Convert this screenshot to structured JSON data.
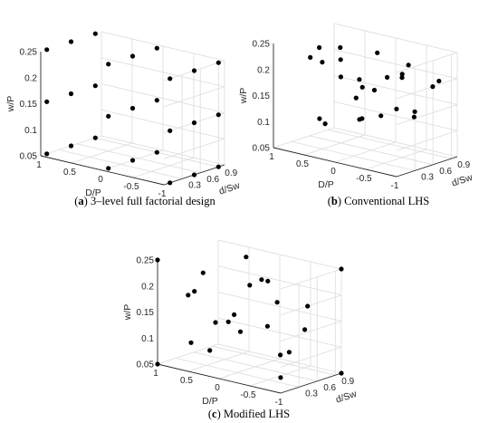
{
  "figure": {
    "captions": [
      {
        "tag": "a",
        "text": "3–level full factorial design"
      },
      {
        "tag": "b",
        "text": "Conventional LHS"
      },
      {
        "tag": "c",
        "text": "Modified LHS"
      }
    ]
  },
  "chart_data": [
    {
      "type": "scatter",
      "projection": "3d",
      "xlabel": "D/P",
      "ylabel": "d/Sw",
      "zlabel": "w/P",
      "xlim": [
        -1,
        1
      ],
      "ylim": [
        0,
        1
      ],
      "zlim": [
        0.05,
        0.25
      ],
      "xticks": [
        "1",
        "0.5",
        "0",
        "-0.5",
        "-1"
      ],
      "yticks": [
        "0.3",
        "0.6",
        "0.9"
      ],
      "zticks": [
        "0.05",
        "0.1",
        "0.15",
        "0.2",
        "0.25"
      ],
      "grid": true,
      "points": [
        [
          1,
          0.1,
          0.05
        ],
        [
          0,
          0.1,
          0.05
        ],
        [
          -1,
          0.1,
          0.05
        ],
        [
          1,
          0.5,
          0.05
        ],
        [
          0,
          0.5,
          0.05
        ],
        [
          -1,
          0.5,
          0.05
        ],
        [
          1,
          0.9,
          0.05
        ],
        [
          0,
          0.9,
          0.05
        ],
        [
          -1,
          0.9,
          0.05
        ],
        [
          1,
          0.1,
          0.15
        ],
        [
          0,
          0.1,
          0.15
        ],
        [
          -1,
          0.1,
          0.15
        ],
        [
          1,
          0.5,
          0.15
        ],
        [
          0,
          0.5,
          0.15
        ],
        [
          -1,
          0.5,
          0.15
        ],
        [
          1,
          0.9,
          0.15
        ],
        [
          0,
          0.9,
          0.15
        ],
        [
          -1,
          0.9,
          0.15
        ],
        [
          1,
          0.1,
          0.25
        ],
        [
          0,
          0.1,
          0.25
        ],
        [
          -1,
          0.1,
          0.25
        ],
        [
          1,
          0.5,
          0.25
        ],
        [
          0,
          0.5,
          0.25
        ],
        [
          -1,
          0.5,
          0.25
        ],
        [
          1,
          0.9,
          0.25
        ],
        [
          0,
          0.9,
          0.25
        ],
        [
          -1,
          0.9,
          0.25
        ]
      ]
    },
    {
      "type": "scatter",
      "projection": "3d",
      "xlabel": "D/P",
      "ylabel": "d/Sw",
      "zlabel": "w/P",
      "xlim": [
        -1,
        1
      ],
      "ylim": [
        0,
        1
      ],
      "zlim": [
        0.05,
        0.25
      ],
      "xticks": [
        "1",
        "0.5",
        "0",
        "-0.5",
        "-1"
      ],
      "yticks": [
        "0.3",
        "0.6",
        "0.9"
      ],
      "zticks": [
        "0.05",
        "0.1",
        "0.15",
        "0.2",
        "0.25"
      ],
      "grid": true,
      "points": [
        [
          0.85,
          0.95,
          0.21
        ],
        [
          0.6,
          0.35,
          0.24
        ],
        [
          0.55,
          0.15,
          0.23
        ],
        [
          0.75,
          0.55,
          0.2
        ],
        [
          0.5,
          0.6,
          0.21
        ],
        [
          0.3,
          0.4,
          0.19
        ],
        [
          0.2,
          0.9,
          0.22
        ],
        [
          0.35,
          0.1,
          0.12
        ],
        [
          0.15,
          0.5,
          0.15
        ],
        [
          0.05,
          0.7,
          0.16
        ],
        [
          -0.1,
          0.3,
          0.2
        ],
        [
          -0.05,
          0.4,
          0.18
        ],
        [
          -0.2,
          0.2,
          0.13
        ],
        [
          -0.3,
          0.8,
          0.19
        ],
        [
          -0.45,
          0.3,
          0.14
        ],
        [
          -0.5,
          0.6,
          0.21
        ],
        [
          -0.6,
          0.25,
          0.22
        ],
        [
          -0.7,
          0.9,
          0.18
        ],
        [
          -0.75,
          0.45,
          0.24
        ],
        [
          -0.85,
          0.15,
          0.17
        ],
        [
          -0.9,
          0.8,
          0.2
        ],
        [
          -0.95,
          0.35,
          0.16
        ],
        [
          0.4,
          0.85,
          0.09
        ],
        [
          -0.35,
          0.95,
          0.11
        ],
        [
          0.9,
          0.75,
          0.07
        ]
      ]
    },
    {
      "type": "scatter",
      "projection": "3d",
      "xlabel": "D/P",
      "ylabel": "d/Sw",
      "zlabel": "w/P",
      "xlim": [
        -1,
        1
      ],
      "ylim": [
        0,
        1
      ],
      "zlim": [
        0.05,
        0.25
      ],
      "xticks": [
        "1",
        "0.5",
        "0",
        "-0.5",
        "-1"
      ],
      "yticks": [
        "0.3",
        "0.6",
        "0.9"
      ],
      "zticks": [
        "0.05",
        "0.1",
        "0.15",
        "0.2",
        "0.25"
      ],
      "grid": true,
      "points": [
        [
          1,
          0.0,
          0.05
        ],
        [
          1,
          0.0,
          0.25
        ],
        [
          -1,
          1.0,
          0.05
        ],
        [
          -1,
          1.0,
          0.25
        ],
        [
          0.95,
          0.7,
          0.2
        ],
        [
          0.75,
          0.25,
          0.18
        ],
        [
          0.6,
          0.55,
          0.12
        ],
        [
          0.4,
          0.85,
          0.24
        ],
        [
          0.3,
          0.15,
          0.09
        ],
        [
          0.2,
          0.45,
          0.15
        ],
        [
          0.05,
          0.75,
          0.21
        ],
        [
          -0.05,
          0.3,
          0.13
        ],
        [
          -0.2,
          0.6,
          0.22
        ],
        [
          -0.3,
          0.2,
          0.23
        ],
        [
          -0.45,
          0.5,
          0.19
        ],
        [
          -0.55,
          0.9,
          0.17
        ],
        [
          -0.65,
          0.35,
          0.1
        ],
        [
          -0.75,
          0.65,
          0.14
        ],
        [
          -0.85,
          0.15,
          0.07
        ],
        [
          0.85,
          0.4,
          0.08
        ],
        [
          0.15,
          0.95,
          0.11
        ],
        [
          -0.1,
          0.05,
          0.16
        ],
        [
          0.5,
          0.1,
          0.2
        ],
        [
          -0.35,
          0.8,
          0.08
        ]
      ]
    }
  ]
}
